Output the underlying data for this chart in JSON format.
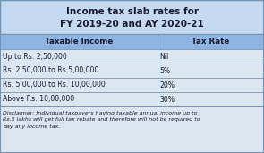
{
  "title_line1": "Income tax slab rates for",
  "title_line2": "FY 2019-20 and AY 2020-21",
  "col_headers": [
    "Taxable Income",
    "Tax Rate"
  ],
  "rows": [
    [
      "Up to Rs. 2,50,000",
      "Nil"
    ],
    [
      "Rs. 2,50,000 to Rs 5,00,000",
      "5%"
    ],
    [
      "Rs. 5,00,000 to Rs. 10,00,000",
      "20%"
    ],
    [
      "Above Rs. 10,00,000",
      "30%"
    ]
  ],
  "disclaimer_lines": [
    "Disclaimer: Individual taxpayers having taxable annual income up to",
    "Rs.5 lakhs will get full tax rebate and therefore will not be required to",
    "pay any income tax."
  ],
  "bg_color": "#b8cce4",
  "title_bg": "#c5d9f1",
  "header_bg": "#8db4e2",
  "row_bg": "#dce6f1",
  "disclaimer_bg": "#dce6f1",
  "border_color": "#7094b8",
  "text_color": "#1a1a2e",
  "col_split": 0.595
}
